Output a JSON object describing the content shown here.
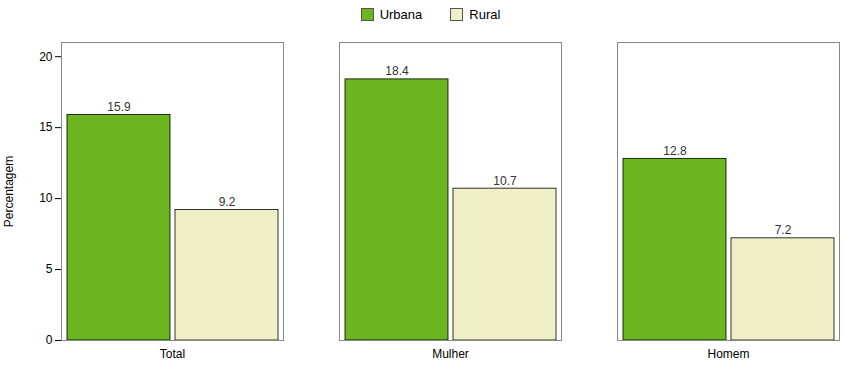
{
  "chart_data": {
    "type": "bar",
    "categories": [
      "Total",
      "Mulher",
      "Homem"
    ],
    "series": [
      {
        "name": "Urbana",
        "color": "#6ab520",
        "values": [
          15.9,
          18.4,
          12.8
        ]
      },
      {
        "name": "Rural",
        "color": "#f0f0c8",
        "values": [
          9.2,
          10.7,
          7.2
        ]
      }
    ],
    "ylabel": "Percentagem",
    "ylim": [
      0,
      21
    ],
    "yticks": [
      0,
      5,
      10,
      15,
      20
    ],
    "grid": false,
    "legend": "top",
    "data_labels": true
  }
}
